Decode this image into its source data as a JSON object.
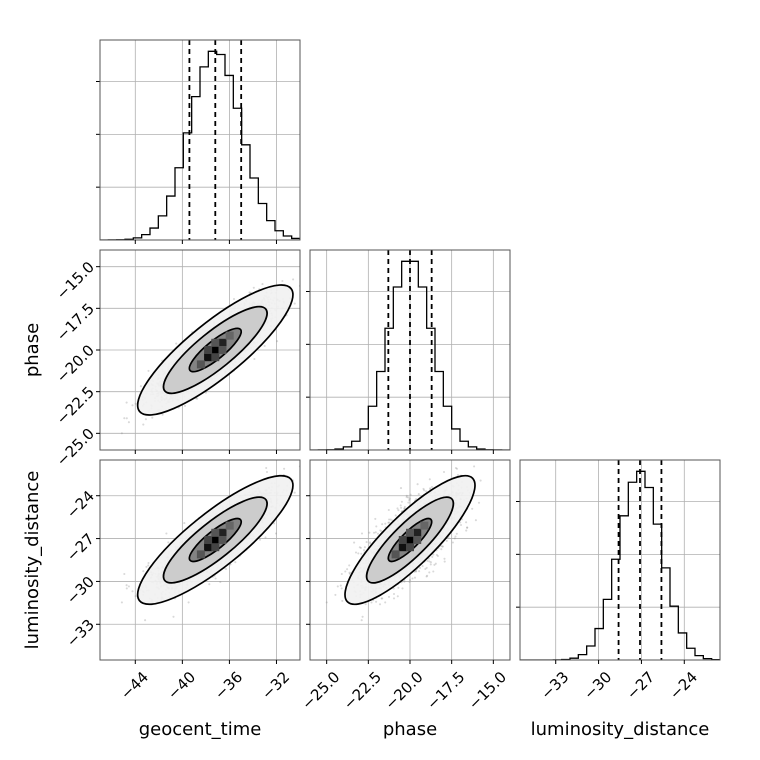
{
  "chart_data": {
    "type": "corner",
    "parameters": [
      "geocent_time",
      "phase",
      "luminosity_distance"
    ],
    "axes": {
      "geocent_time": {
        "range": [
          -47,
          -30
        ],
        "ticks": [
          -44,
          -40,
          -36,
          -32
        ],
        "tick_labels": [
          "−44",
          "−40",
          "−36",
          "−32"
        ],
        "xlabel": "geocent_time"
      },
      "phase": {
        "range": [
          -26,
          -14
        ],
        "ticks": [
          -25.0,
          -22.5,
          -20.0,
          -17.5,
          -15.0
        ],
        "tick_labels": [
          "−25.0",
          "−22.5",
          "−20.0",
          "−17.5",
          "−15.0"
        ],
        "xlabel": "phase",
        "ylabel": "phase"
      },
      "luminosity_distance": {
        "range": [
          -35.5,
          -21.5
        ],
        "ticks": [
          -33,
          -30,
          -27,
          -24
        ],
        "tick_labels": [
          "−33",
          "−30",
          "−27",
          "−24"
        ],
        "xlabel": "luminosity_distance",
        "ylabel": "luminosity_distance"
      }
    },
    "marginals": [
      {
        "parameter": "geocent_time",
        "mean": -37.2,
        "std": 2.2,
        "quantiles": [
          -39.4,
          -37.2,
          -35.0
        ]
      },
      {
        "parameter": "phase",
        "mean": -20.0,
        "std": 1.3,
        "quantiles": [
          -21.3,
          -20.0,
          -18.7
        ]
      },
      {
        "parameter": "luminosity_distance",
        "mean": -27.1,
        "std": 1.5,
        "quantiles": [
          -28.6,
          -27.1,
          -25.6
        ]
      }
    ],
    "joints": [
      {
        "x": "geocent_time",
        "y": "phase",
        "correlation": 0.85,
        "contour_levels": [
          0.39,
          0.86,
          0.99
        ]
      },
      {
        "x": "geocent_time",
        "y": "luminosity_distance",
        "correlation": 0.85,
        "contour_levels": [
          0.39,
          0.86,
          0.99
        ]
      },
      {
        "x": "phase",
        "y": "luminosity_distance",
        "correlation": 0.85,
        "contour_levels": [
          0.39,
          0.86,
          0.99
        ]
      }
    ],
    "grid": true,
    "colors": {
      "line": "#000000",
      "scatter": "#888888",
      "grid": "#b0b0b0"
    }
  }
}
